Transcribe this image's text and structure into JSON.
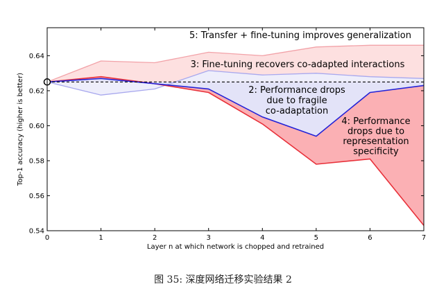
{
  "chart_data": {
    "type": "line",
    "xlabel": "Layer n at which network is chopped and retrained",
    "ylabel": "Top-1 accuracy (higher is better)",
    "xlim": [
      0,
      7
    ],
    "ylim": [
      0.54,
      0.656
    ],
    "x_ticks": [
      0,
      1,
      2,
      3,
      4,
      5,
      6,
      7
    ],
    "y_ticks": [
      0.54,
      0.56,
      0.58,
      0.6,
      0.62,
      0.64
    ],
    "y_tick_labels": [
      "0.54",
      "0.56",
      "0.58",
      "0.60",
      "0.62",
      "0.64"
    ],
    "grid": false,
    "baseline": {
      "x": 0,
      "y": 0.625
    },
    "series": [
      {
        "key": "transfer_ft",
        "x": [
          0,
          1,
          2,
          3,
          4,
          5,
          6,
          7
        ],
        "values": [
          0.625,
          0.637,
          0.636,
          0.642,
          0.64,
          0.645,
          0.646,
          0.646
        ]
      },
      {
        "key": "self_ft",
        "x": [
          0,
          1,
          2,
          3,
          4,
          5,
          6,
          7
        ],
        "values": [
          0.625,
          0.6175,
          0.621,
          0.6315,
          0.629,
          0.63,
          0.628,
          0.627
        ]
      },
      {
        "key": "self_frozen",
        "x": [
          0,
          1,
          2,
          3,
          4,
          5,
          6,
          7
        ],
        "values": [
          0.625,
          0.627,
          0.624,
          0.621,
          0.605,
          0.594,
          0.619,
          0.623
        ]
      },
      {
        "key": "transfer_frozen",
        "x": [
          0,
          1,
          2,
          3,
          4,
          5,
          6,
          7
        ],
        "values": [
          0.625,
          0.628,
          0.624,
          0.619,
          0.601,
          0.578,
          0.581,
          0.543
        ]
      }
    ],
    "annotations": [
      {
        "key": "a5",
        "lines": [
          "5: Transfer + fine-tuning improves generalization"
        ]
      },
      {
        "key": "a3",
        "lines": [
          "3: Fine-tuning recovers co-adapted interactions"
        ]
      },
      {
        "key": "a2",
        "lines": [
          "2: Performance drops",
          "due to fragile",
          "co-adaptation"
        ]
      },
      {
        "key": "a4",
        "lines": [
          "4: Performance",
          "drops due to",
          "representation",
          "specificity"
        ]
      }
    ],
    "colors": {
      "red": "#e8313a",
      "blue": "#2323d8",
      "light_blue": "#a8a8ee",
      "light_red": "#f2a2a8",
      "fill_red": "#fbb0b4",
      "fill_pink": "#fde0e0",
      "fill_blue": "#e3e3f8",
      "fill_lightblue": "#eeeefb"
    }
  },
  "caption": "图 35: 深度网络迁移实验结果 2"
}
